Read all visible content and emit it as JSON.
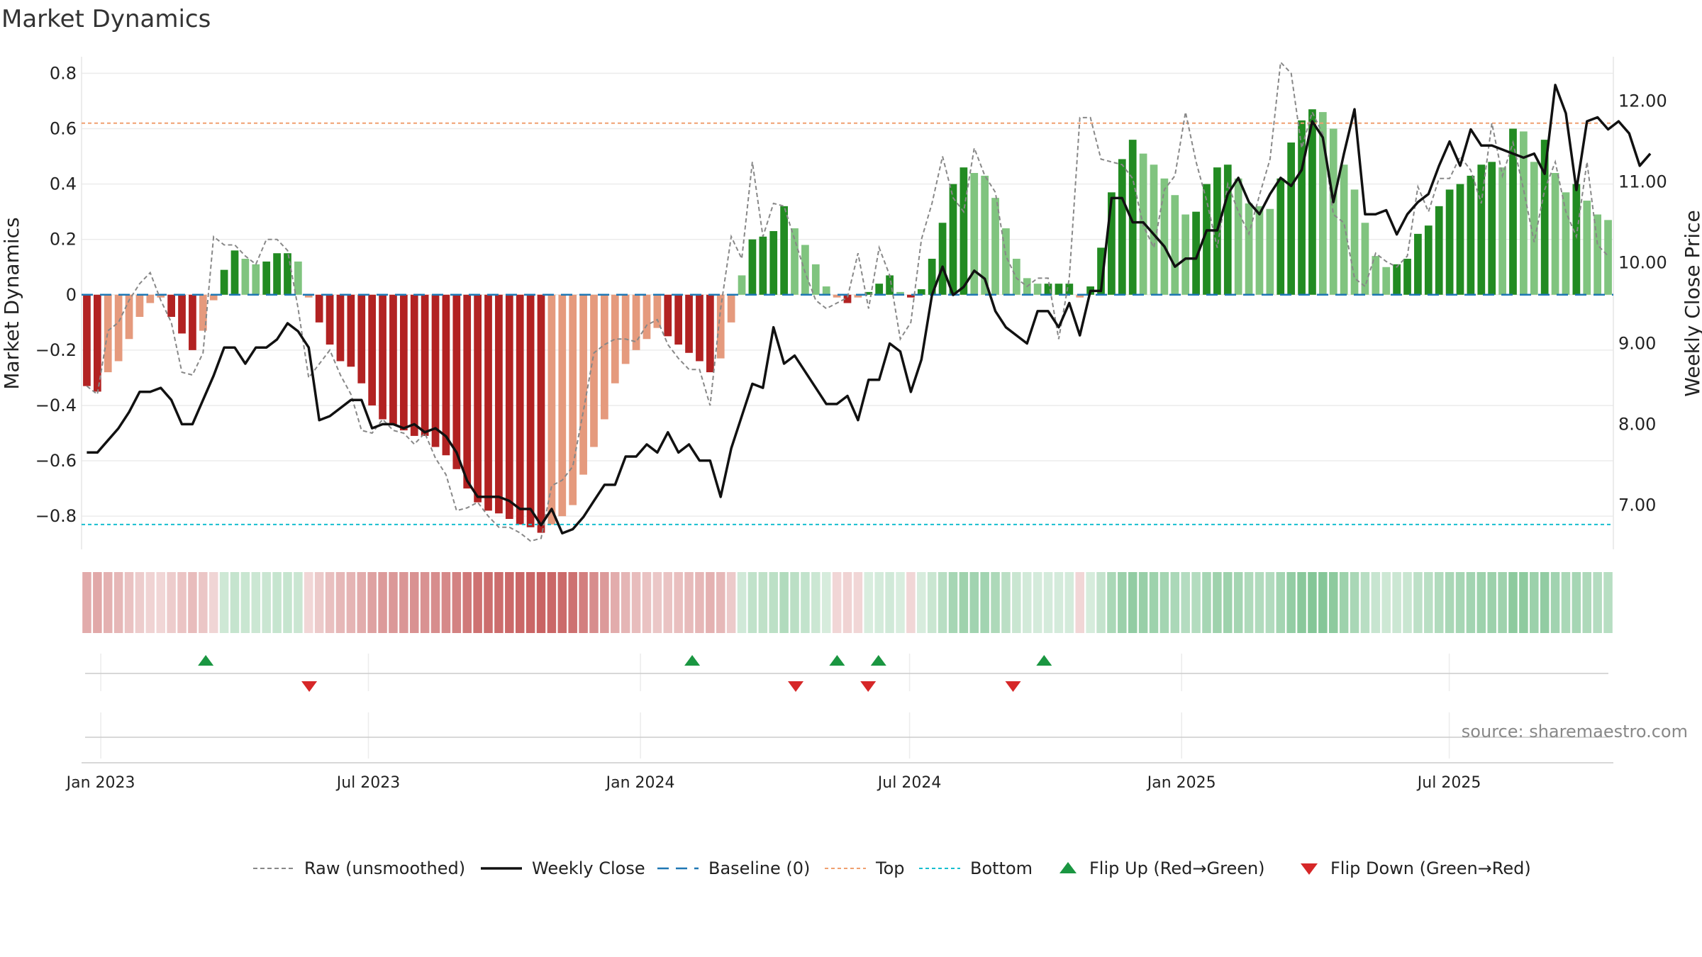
{
  "chart_data": {
    "type": "bar",
    "title": "Market Dynamics",
    "ylabel": "Market Dynamics",
    "y2label": "Weekly Close Price",
    "ylim": [
      -0.92,
      0.86
    ],
    "y2lim": [
      6.45,
      12.55
    ],
    "yticks": [
      "0.8",
      "0.6",
      "0.4",
      "0.2",
      "0",
      "−0.2",
      "−0.4",
      "−0.6",
      "−0.8"
    ],
    "yticks_values": [
      0.8,
      0.6,
      0.4,
      0.2,
      0,
      -0.2,
      -0.4,
      -0.6,
      -0.8
    ],
    "y2ticks": [
      "12.00",
      "11.00",
      "10.00",
      "9.00",
      "8.00",
      "7.00"
    ],
    "y2ticks_values": [
      12,
      11,
      10,
      9,
      8,
      7
    ],
    "x_start": "2022-12-19",
    "x_end": "2025-10-20",
    "xticks": [
      {
        "label": "Jan 2023",
        "date": "2023-01-01"
      },
      {
        "label": "Jul 2023",
        "date": "2023-07-01"
      },
      {
        "label": "Jan 2024",
        "date": "2024-01-01"
      },
      {
        "label": "Jul 2024",
        "date": "2024-07-01"
      },
      {
        "label": "Jan 2025",
        "date": "2025-01-01"
      },
      {
        "label": "Jul 2025",
        "date": "2025-07-01"
      }
    ],
    "top_line": 0.62,
    "bottom_line": -0.83,
    "baseline": 0,
    "dynamics": [
      -0.33,
      -0.35,
      -0.28,
      -0.24,
      -0.16,
      -0.08,
      -0.03,
      -0.01,
      -0.08,
      -0.14,
      -0.2,
      -0.13,
      -0.02,
      0.09,
      0.16,
      0.13,
      0.11,
      0.12,
      0.15,
      0.15,
      0.12,
      -0.01,
      -0.1,
      -0.18,
      -0.24,
      -0.26,
      -0.32,
      -0.4,
      -0.45,
      -0.47,
      -0.49,
      -0.51,
      -0.51,
      -0.55,
      -0.58,
      -0.63,
      -0.7,
      -0.75,
      -0.78,
      -0.79,
      -0.81,
      -0.83,
      -0.84,
      -0.86,
      -0.83,
      -0.8,
      -0.76,
      -0.65,
      -0.55,
      -0.45,
      -0.32,
      -0.25,
      -0.2,
      -0.16,
      -0.12,
      -0.15,
      -0.18,
      -0.21,
      -0.24,
      -0.28,
      -0.23,
      -0.1,
      0.07,
      0.2,
      0.21,
      0.23,
      0.32,
      0.24,
      0.18,
      0.11,
      0.03,
      -0.01,
      -0.03,
      -0.01,
      0.01,
      0.04,
      0.07,
      0.01,
      -0.01,
      0.02,
      0.13,
      0.26,
      0.4,
      0.46,
      0.44,
      0.43,
      0.35,
      0.24,
      0.13,
      0.06,
      0.04,
      0.04,
      0.04,
      0.04,
      -0.01,
      0.03,
      0.17,
      0.37,
      0.49,
      0.56,
      0.51,
      0.47,
      0.42,
      0.36,
      0.29,
      0.3,
      0.4,
      0.46,
      0.47,
      0.42,
      0.33,
      0.32,
      0.31,
      0.42,
      0.55,
      0.63,
      0.67,
      0.66,
      0.6,
      0.47,
      0.38,
      0.26,
      0.14,
      0.1,
      0.11,
      0.13,
      0.22,
      0.25,
      0.32,
      0.38,
      0.4,
      0.43,
      0.47,
      0.48,
      0.46,
      0.6,
      0.59,
      0.48,
      0.56,
      0.44,
      0.37,
      0.4,
      0.34,
      0.29,
      0.27
    ],
    "raw": [
      -0.33,
      -0.36,
      -0.13,
      -0.1,
      -0.02,
      0.04,
      0.08,
      -0.02,
      -0.1,
      -0.28,
      -0.29,
      -0.21,
      0.21,
      0.18,
      0.18,
      0.14,
      0.11,
      0.2,
      0.2,
      0.16,
      -0.05,
      -0.3,
      -0.25,
      -0.2,
      -0.29,
      -0.36,
      -0.49,
      -0.5,
      -0.45,
      -0.49,
      -0.5,
      -0.54,
      -0.5,
      -0.59,
      -0.65,
      -0.78,
      -0.77,
      -0.75,
      -0.8,
      -0.84,
      -0.84,
      -0.86,
      -0.89,
      -0.88,
      -0.69,
      -0.67,
      -0.62,
      -0.42,
      -0.21,
      -0.18,
      -0.16,
      -0.16,
      -0.17,
      -0.11,
      -0.09,
      -0.18,
      -0.23,
      -0.27,
      -0.27,
      -0.4,
      -0.05,
      0.21,
      0.13,
      0.48,
      0.21,
      0.33,
      0.32,
      0.2,
      0.08,
      -0.02,
      -0.05,
      -0.03,
      -0.01,
      0.15,
      -0.05,
      0.17,
      0.07,
      -0.16,
      -0.1,
      0.2,
      0.33,
      0.5,
      0.35,
      0.3,
      0.53,
      0.43,
      0.37,
      0.14,
      0.06,
      0.03,
      0.06,
      0.06,
      -0.16,
      0.06,
      0.64,
      0.64,
      0.49,
      0.48,
      0.47,
      0.42,
      0.25,
      0.17,
      0.38,
      0.43,
      0.66,
      0.48,
      0.34,
      0.17,
      0.4,
      0.3,
      0.22,
      0.36,
      0.49,
      0.84,
      0.8,
      0.53,
      0.66,
      0.58,
      0.29,
      0.26,
      0.06,
      0.03,
      0.15,
      0.12,
      0.1,
      0.14,
      0.39,
      0.3,
      0.42,
      0.42,
      0.5,
      0.45,
      0.33,
      0.62,
      0.43,
      0.55,
      0.38,
      0.19,
      0.38,
      0.48,
      0.3,
      0.21,
      0.48,
      0.18,
      0.14
    ],
    "weekly_close": [
      7.65,
      7.65,
      7.8,
      7.95,
      8.15,
      8.4,
      8.4,
      8.45,
      8.3,
      8.0,
      8.0,
      8.3,
      8.6,
      8.95,
      8.95,
      8.75,
      8.95,
      8.95,
      9.05,
      9.25,
      9.15,
      8.95,
      8.05,
      8.1,
      8.2,
      8.3,
      8.3,
      7.95,
      8.0,
      8.0,
      7.95,
      8.0,
      7.9,
      7.95,
      7.85,
      7.65,
      7.3,
      7.1,
      7.1,
      7.1,
      7.05,
      6.95,
      6.95,
      6.75,
      6.95,
      6.65,
      6.7,
      6.85,
      7.05,
      7.25,
      7.25,
      7.6,
      7.6,
      7.75,
      7.65,
      7.9,
      7.65,
      7.75,
      7.55,
      7.55,
      7.1,
      7.7,
      8.1,
      8.5,
      8.45,
      9.2,
      8.75,
      8.85,
      8.65,
      8.45,
      8.25,
      8.25,
      8.35,
      8.05,
      8.55,
      8.55,
      9.0,
      8.9,
      8.4,
      8.8,
      9.6,
      9.95,
      9.6,
      9.7,
      9.9,
      9.8,
      9.4,
      9.2,
      9.1,
      9.0,
      9.4,
      9.4,
      9.2,
      9.5,
      9.1,
      9.65,
      9.65,
      10.8,
      10.8,
      10.5,
      10.5,
      10.35,
      10.2,
      9.95,
      10.05,
      10.05,
      10.4,
      10.4,
      10.85,
      11.05,
      10.75,
      10.6,
      10.85,
      11.05,
      10.95,
      11.15,
      11.75,
      11.55,
      10.75,
      11.35,
      11.9,
      10.6,
      10.6,
      10.65,
      10.35,
      10.6,
      10.75,
      10.85,
      11.2,
      11.5,
      11.2,
      11.65,
      11.45,
      11.45,
      11.4,
      11.35,
      11.3,
      11.35,
      11.1,
      12.2,
      11.85,
      10.9,
      11.75,
      11.8,
      11.65,
      11.75,
      11.6,
      11.2,
      11.35
    ],
    "flip_up_dates": [
      "2023-03-13",
      "2024-02-05",
      "2024-05-13",
      "2024-06-10",
      "2024-09-30"
    ],
    "flip_down_dates": [
      "2023-05-22",
      "2024-04-15",
      "2024-06-03",
      "2024-09-09"
    ],
    "source": "source: sharemaestro.com",
    "legend": [
      {
        "label": "Raw (unsmoothed)",
        "kind": "dashed-gray"
      },
      {
        "label": "Weekly Close",
        "kind": "solid-black"
      },
      {
        "label": "Baseline (0)",
        "kind": "dashed-blue"
      },
      {
        "label": "Top",
        "kind": "dotted-orange"
      },
      {
        "label": "Bottom",
        "kind": "dotted-cyan"
      },
      {
        "label": "Flip Up (Red→Green)",
        "kind": "triangle-up"
      },
      {
        "label": "Flip Down (Green→Red)",
        "kind": "triangle-down"
      }
    ],
    "colors": {
      "strong_red": "#b22222",
      "light_red": "#e59a7d",
      "strong_green": "#228b22",
      "light_green": "#80c47f",
      "close_line": "#111111",
      "raw_line": "#888888",
      "baseline": "#1f77b4",
      "top": "#f0a070",
      "bottom": "#17becf",
      "flip_up": "#1a9641",
      "flip_down": "#d62728",
      "source": "#888888"
    }
  }
}
